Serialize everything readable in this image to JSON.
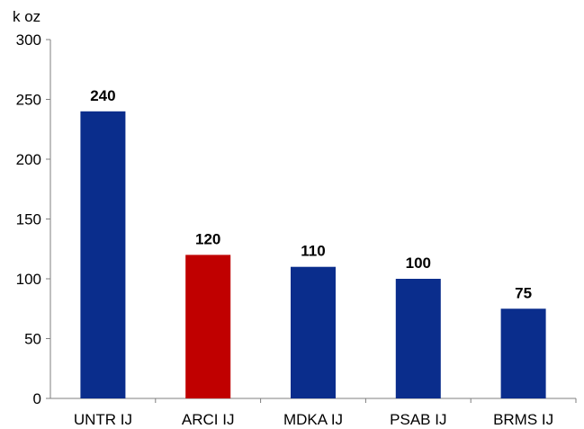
{
  "chart_data": {
    "type": "bar",
    "unit_label": "k oz",
    "categories": [
      "UNTR IJ",
      "ARCI IJ",
      "MDKA IJ",
      "PSAB IJ",
      "BRMS IJ"
    ],
    "values": [
      240,
      120,
      110,
      100,
      75
    ],
    "data_labels": [
      "240",
      "120",
      "110",
      "100",
      "75"
    ],
    "colors": [
      "#0a2d8c",
      "#c00000",
      "#0a2d8c",
      "#0a2d8c",
      "#0a2d8c"
    ],
    "ylim": [
      0,
      300
    ],
    "yticks": [
      0,
      50,
      100,
      150,
      200,
      250,
      300
    ],
    "ytick_labels": [
      "0",
      "50",
      "100",
      "150",
      "200",
      "250",
      "300"
    ],
    "grid": false,
    "title": "",
    "xlabel": "",
    "ylabel": ""
  }
}
